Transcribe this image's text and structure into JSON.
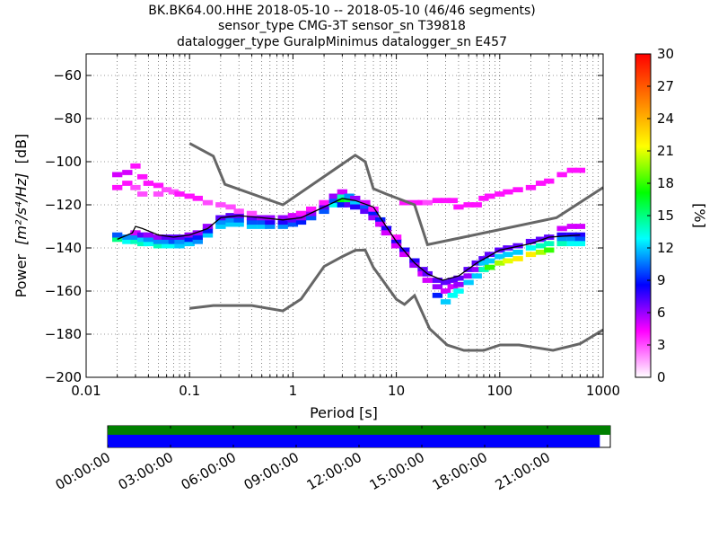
{
  "chart_data": {
    "type": "heatmap",
    "title_lines": [
      "BK.BK64.00.HHE   2018-05-10 -- 2018-05-10  (46/46 segments)",
      "sensor_type CMG-3T sensor_sn T39818",
      "datalogger_type GuralpMinimus datalogger_sn E457"
    ],
    "xlabel": "Period [s]",
    "ylabel_prefix": "Power",
    "ylabel_unit": "[m²/s⁴/Hz]",
    "ylabel_suffix": "[dB]",
    "x_scale": "log",
    "xlim": [
      0.01,
      1000
    ],
    "ylim": [
      -200,
      -50
    ],
    "x_ticks": [
      {
        "value": 0.01,
        "label": "0.01"
      },
      {
        "value": 0.1,
        "label": "0.1"
      },
      {
        "value": 1,
        "label": "1"
      },
      {
        "value": 10,
        "label": "10"
      },
      {
        "value": 100,
        "label": "100"
      },
      {
        "value": 1000,
        "label": "1000"
      }
    ],
    "y_ticks": [
      {
        "value": -60,
        "label": "−60"
      },
      {
        "value": -80,
        "label": "−80"
      },
      {
        "value": -100,
        "label": "−100"
      },
      {
        "value": -120,
        "label": "−120"
      },
      {
        "value": -140,
        "label": "−140"
      },
      {
        "value": -160,
        "label": "−160"
      },
      {
        "value": -180,
        "label": "−180"
      },
      {
        "value": -200,
        "label": "−200"
      }
    ],
    "grid": "dotted",
    "noise_models": {
      "high": [
        [
          0.1,
          -91.5
        ],
        [
          0.17,
          -97.4
        ],
        [
          0.22,
          -110.5
        ],
        [
          0.8,
          -120
        ],
        [
          4,
          -97
        ],
        [
          5,
          -100
        ],
        [
          6,
          -112.5
        ],
        [
          8,
          -115
        ],
        [
          15,
          -120
        ],
        [
          20,
          -138.5
        ],
        [
          354,
          -126
        ],
        [
          1000,
          -112
        ]
      ],
      "low": [
        [
          0.1,
          -168
        ],
        [
          0.17,
          -166.7
        ],
        [
          0.4,
          -166.7
        ],
        [
          0.8,
          -169.2
        ],
        [
          1.2,
          -163.7
        ],
        [
          2,
          -148.6
        ],
        [
          3,
          -144
        ],
        [
          4,
          -141.1
        ],
        [
          5,
          -141
        ],
        [
          6,
          -149
        ],
        [
          10,
          -163.8
        ],
        [
          12,
          -166.2
        ],
        [
          15,
          -162.1
        ],
        [
          21,
          -177.5
        ],
        [
          31,
          -185
        ],
        [
          45,
          -187.5
        ],
        [
          70,
          -187.5
        ],
        [
          101,
          -185
        ],
        [
          154,
          -185
        ],
        [
          328,
          -187.5
        ],
        [
          600,
          -184.4
        ],
        [
          1000,
          -178
        ]
      ]
    },
    "mean_curve": [
      [
        0.02,
        -136
      ],
      [
        0.028,
        -133
      ],
      [
        0.03,
        -130
      ],
      [
        0.035,
        -131
      ],
      [
        0.05,
        -134
      ],
      [
        0.07,
        -135
      ],
      [
        0.1,
        -134
      ],
      [
        0.15,
        -131
      ],
      [
        0.2,
        -126
      ],
      [
        0.3,
        -125
      ],
      [
        0.5,
        -126
      ],
      [
        0.8,
        -127
      ],
      [
        1.2,
        -126
      ],
      [
        2,
        -121
      ],
      [
        3,
        -117
      ],
      [
        4,
        -118
      ],
      [
        6,
        -121
      ],
      [
        7,
        -126
      ],
      [
        10,
        -137
      ],
      [
        15,
        -147
      ],
      [
        20,
        -152
      ],
      [
        28,
        -155
      ],
      [
        40,
        -153
      ],
      [
        60,
        -147
      ],
      [
        100,
        -141
      ],
      [
        200,
        -138
      ],
      [
        300,
        -135
      ],
      [
        600,
        -134
      ]
    ],
    "psd_density_percent": [
      {
        "p": 0.02,
        "db": -136,
        "v": 15
      },
      {
        "p": 0.02,
        "db": -134,
        "v": 10
      },
      {
        "p": 0.02,
        "db": -106,
        "v": 5
      },
      {
        "p": 0.02,
        "db": -112,
        "v": 4
      },
      {
        "p": 0.025,
        "db": -137,
        "v": 13
      },
      {
        "p": 0.025,
        "db": -135,
        "v": 11
      },
      {
        "p": 0.025,
        "db": -105,
        "v": 5
      },
      {
        "p": 0.025,
        "db": -110,
        "v": 4
      },
      {
        "p": 0.03,
        "db": -137,
        "v": 14
      },
      {
        "p": 0.03,
        "db": -135,
        "v": 11
      },
      {
        "p": 0.03,
        "db": -133,
        "v": 5
      },
      {
        "p": 0.03,
        "db": -102,
        "v": 4
      },
      {
        "p": 0.03,
        "db": -112,
        "v": 3
      },
      {
        "p": 0.035,
        "db": -138,
        "v": 14
      },
      {
        "p": 0.035,
        "db": -136,
        "v": 12
      },
      {
        "p": 0.035,
        "db": -134,
        "v": 7
      },
      {
        "p": 0.035,
        "db": -107,
        "v": 4
      },
      {
        "p": 0.035,
        "db": -115,
        "v": 3
      },
      {
        "p": 0.04,
        "db": -138,
        "v": 13
      },
      {
        "p": 0.04,
        "db": -136,
        "v": 11
      },
      {
        "p": 0.04,
        "db": -134,
        "v": 6
      },
      {
        "p": 0.04,
        "db": -110,
        "v": 4
      },
      {
        "p": 0.05,
        "db": -139,
        "v": 14
      },
      {
        "p": 0.05,
        "db": -137,
        "v": 11
      },
      {
        "p": 0.05,
        "db": -135,
        "v": 6
      },
      {
        "p": 0.05,
        "db": -111,
        "v": 4
      },
      {
        "p": 0.05,
        "db": -115,
        "v": 3
      },
      {
        "p": 0.06,
        "db": -139,
        "v": 13
      },
      {
        "p": 0.06,
        "db": -137,
        "v": 11
      },
      {
        "p": 0.06,
        "db": -135,
        "v": 7
      },
      {
        "p": 0.06,
        "db": -113,
        "v": 3
      },
      {
        "p": 0.07,
        "db": -139,
        "v": 13
      },
      {
        "p": 0.07,
        "db": -137,
        "v": 10
      },
      {
        "p": 0.07,
        "db": -135,
        "v": 7
      },
      {
        "p": 0.07,
        "db": -114,
        "v": 3
      },
      {
        "p": 0.08,
        "db": -139,
        "v": 12
      },
      {
        "p": 0.08,
        "db": -137,
        "v": 11
      },
      {
        "p": 0.08,
        "db": -135,
        "v": 7
      },
      {
        "p": 0.08,
        "db": -115,
        "v": 4
      },
      {
        "p": 0.1,
        "db": -138,
        "v": 12
      },
      {
        "p": 0.1,
        "db": -136,
        "v": 9
      },
      {
        "p": 0.1,
        "db": -134,
        "v": 6
      },
      {
        "p": 0.1,
        "db": -116,
        "v": 4
      },
      {
        "p": 0.12,
        "db": -137,
        "v": 11
      },
      {
        "p": 0.12,
        "db": -135,
        "v": 9
      },
      {
        "p": 0.12,
        "db": -133,
        "v": 6
      },
      {
        "p": 0.12,
        "db": -117,
        "v": 4
      },
      {
        "p": 0.15,
        "db": -134,
        "v": 12
      },
      {
        "p": 0.15,
        "db": -132,
        "v": 9
      },
      {
        "p": 0.15,
        "db": -130,
        "v": 6
      },
      {
        "p": 0.15,
        "db": -119,
        "v": 3
      },
      {
        "p": 0.2,
        "db": -130,
        "v": 12
      },
      {
        "p": 0.2,
        "db": -128,
        "v": 11
      },
      {
        "p": 0.2,
        "db": -126,
        "v": 7
      },
      {
        "p": 0.2,
        "db": -120,
        "v": 3
      },
      {
        "p": 0.25,
        "db": -129,
        "v": 12
      },
      {
        "p": 0.25,
        "db": -127,
        "v": 11
      },
      {
        "p": 0.25,
        "db": -125,
        "v": 7
      },
      {
        "p": 0.25,
        "db": -121,
        "v": 3
      },
      {
        "p": 0.3,
        "db": -129,
        "v": 12
      },
      {
        "p": 0.3,
        "db": -127,
        "v": 10
      },
      {
        "p": 0.3,
        "db": -125,
        "v": 7
      },
      {
        "p": 0.3,
        "db": -123,
        "v": 3
      },
      {
        "p": 0.4,
        "db": -130,
        "v": 12
      },
      {
        "p": 0.4,
        "db": -128,
        "v": 10
      },
      {
        "p": 0.4,
        "db": -126,
        "v": 7
      },
      {
        "p": 0.4,
        "db": -124,
        "v": 3
      },
      {
        "p": 0.5,
        "db": -130,
        "v": 12
      },
      {
        "p": 0.5,
        "db": -128,
        "v": 10
      },
      {
        "p": 0.5,
        "db": -126,
        "v": 6
      },
      {
        "p": 0.6,
        "db": -130,
        "v": 11
      },
      {
        "p": 0.6,
        "db": -128,
        "v": 8
      },
      {
        "p": 0.6,
        "db": -126,
        "v": 6
      },
      {
        "p": 0.8,
        "db": -130,
        "v": 11
      },
      {
        "p": 0.8,
        "db": -128,
        "v": 8
      },
      {
        "p": 0.8,
        "db": -126,
        "v": 6
      },
      {
        "p": 1.0,
        "db": -129,
        "v": 10
      },
      {
        "p": 1.0,
        "db": -127,
        "v": 7
      },
      {
        "p": 1.0,
        "db": -125,
        "v": 5
      },
      {
        "p": 1.2,
        "db": -128,
        "v": 9
      },
      {
        "p": 1.2,
        "db": -126,
        "v": 6
      },
      {
        "p": 1.2,
        "db": -124,
        "v": 4
      },
      {
        "p": 1.5,
        "db": -126,
        "v": 10
      },
      {
        "p": 1.5,
        "db": -124,
        "v": 6
      },
      {
        "p": 1.5,
        "db": -122,
        "v": 4
      },
      {
        "p": 2.0,
        "db": -123,
        "v": 10
      },
      {
        "p": 2.0,
        "db": -121,
        "v": 7
      },
      {
        "p": 2.0,
        "db": -119,
        "v": 4
      },
      {
        "p": 2.5,
        "db": -120,
        "v": 13
      },
      {
        "p": 2.5,
        "db": -118,
        "v": 10
      },
      {
        "p": 2.5,
        "db": -116,
        "v": 6
      },
      {
        "p": 3.0,
        "db": -118,
        "v": 17
      },
      {
        "p": 3.0,
        "db": -116,
        "v": 14
      },
      {
        "p": 3.0,
        "db": -120,
        "v": 9
      },
      {
        "p": 3.0,
        "db": -114,
        "v": 5
      },
      {
        "p": 3.5,
        "db": -118,
        "v": 16
      },
      {
        "p": 3.5,
        "db": -116,
        "v": 11
      },
      {
        "p": 3.5,
        "db": -120,
        "v": 7
      },
      {
        "p": 4.0,
        "db": -119,
        "v": 12
      },
      {
        "p": 4.0,
        "db": -121,
        "v": 8
      },
      {
        "p": 4.0,
        "db": -117,
        "v": 6
      },
      {
        "p": 5.0,
        "db": -121,
        "v": 10
      },
      {
        "p": 5.0,
        "db": -123,
        "v": 7
      },
      {
        "p": 5.0,
        "db": -119,
        "v": 5
      },
      {
        "p": 6.0,
        "db": -124,
        "v": 9
      },
      {
        "p": 6.0,
        "db": -126,
        "v": 6
      },
      {
        "p": 6.0,
        "db": -122,
        "v": 4
      },
      {
        "p": 7.0,
        "db": -127,
        "v": 9
      },
      {
        "p": 7.0,
        "db": -129,
        "v": 5
      },
      {
        "p": 8.0,
        "db": -131,
        "v": 8
      },
      {
        "p": 8.0,
        "db": -133,
        "v": 5
      },
      {
        "p": 10,
        "db": -137,
        "v": 8
      },
      {
        "p": 10,
        "db": -139,
        "v": 5
      },
      {
        "p": 10,
        "db": -135,
        "v": 4
      },
      {
        "p": 12,
        "db": -141,
        "v": 8
      },
      {
        "p": 12,
        "db": -143,
        "v": 5
      },
      {
        "p": 12,
        "db": -119,
        "v": 4
      },
      {
        "p": 15,
        "db": -146,
        "v": 8
      },
      {
        "p": 15,
        "db": -148,
        "v": 6
      },
      {
        "p": 15,
        "db": -119,
        "v": 4
      },
      {
        "p": 18,
        "db": -150,
        "v": 7
      },
      {
        "p": 18,
        "db": -152,
        "v": 5
      },
      {
        "p": 18,
        "db": -119,
        "v": 4
      },
      {
        "p": 20,
        "db": -152,
        "v": 7
      },
      {
        "p": 20,
        "db": -155,
        "v": 5
      },
      {
        "p": 20,
        "db": -119,
        "v": 3
      },
      {
        "p": 25,
        "db": -155,
        "v": 7
      },
      {
        "p": 25,
        "db": -158,
        "v": 6
      },
      {
        "p": 25,
        "db": -162,
        "v": 9
      },
      {
        "p": 25,
        "db": -118,
        "v": 4
      },
      {
        "p": 30,
        "db": -156,
        "v": 7
      },
      {
        "p": 30,
        "db": -160,
        "v": 5
      },
      {
        "p": 30,
        "db": -165,
        "v": 12
      },
      {
        "p": 30,
        "db": -118,
        "v": 4
      },
      {
        "p": 35,
        "db": -155,
        "v": 7
      },
      {
        "p": 35,
        "db": -158,
        "v": 5
      },
      {
        "p": 35,
        "db": -162,
        "v": 13
      },
      {
        "p": 35,
        "db": -118,
        "v": 4
      },
      {
        "p": 40,
        "db": -154,
        "v": 7
      },
      {
        "p": 40,
        "db": -157,
        "v": 6
      },
      {
        "p": 40,
        "db": -160,
        "v": 13
      },
      {
        "p": 40,
        "db": -121,
        "v": 4
      },
      {
        "p": 50,
        "db": -150,
        "v": 7
      },
      {
        "p": 50,
        "db": -153,
        "v": 6
      },
      {
        "p": 50,
        "db": -156,
        "v": 12
      },
      {
        "p": 50,
        "db": -120,
        "v": 4
      },
      {
        "p": 60,
        "db": -147,
        "v": 7
      },
      {
        "p": 60,
        "db": -150,
        "v": 6
      },
      {
        "p": 60,
        "db": -153,
        "v": 12
      },
      {
        "p": 60,
        "db": -120,
        "v": 4
      },
      {
        "p": 70,
        "db": -145,
        "v": 7
      },
      {
        "p": 70,
        "db": -147,
        "v": 12
      },
      {
        "p": 70,
        "db": -150,
        "v": 14
      },
      {
        "p": 70,
        "db": -117,
        "v": 4
      },
      {
        "p": 80,
        "db": -143,
        "v": 7
      },
      {
        "p": 80,
        "db": -146,
        "v": 12
      },
      {
        "p": 80,
        "db": -149,
        "v": 18
      },
      {
        "p": 80,
        "db": -116,
        "v": 4
      },
      {
        "p": 100,
        "db": -141,
        "v": 7
      },
      {
        "p": 100,
        "db": -144,
        "v": 12
      },
      {
        "p": 100,
        "db": -147,
        "v": 20
      },
      {
        "p": 100,
        "db": -115,
        "v": 4
      },
      {
        "p": 120,
        "db": -140,
        "v": 7
      },
      {
        "p": 120,
        "db": -143,
        "v": 12
      },
      {
        "p": 120,
        "db": -146,
        "v": 21
      },
      {
        "p": 120,
        "db": -114,
        "v": 4
      },
      {
        "p": 150,
        "db": -139,
        "v": 7
      },
      {
        "p": 150,
        "db": -142,
        "v": 12
      },
      {
        "p": 150,
        "db": -145,
        "v": 22
      },
      {
        "p": 150,
        "db": -113,
        "v": 4
      },
      {
        "p": 200,
        "db": -137,
        "v": 7
      },
      {
        "p": 200,
        "db": -140,
        "v": 13
      },
      {
        "p": 200,
        "db": -143,
        "v": 22
      },
      {
        "p": 200,
        "db": -112,
        "v": 4
      },
      {
        "p": 250,
        "db": -136,
        "v": 7
      },
      {
        "p": 250,
        "db": -139,
        "v": 14
      },
      {
        "p": 250,
        "db": -142,
        "v": 20
      },
      {
        "p": 250,
        "db": -110,
        "v": 4
      },
      {
        "p": 300,
        "db": -135,
        "v": 7
      },
      {
        "p": 300,
        "db": -138,
        "v": 14
      },
      {
        "p": 300,
        "db": -141,
        "v": 18
      },
      {
        "p": 300,
        "db": -109,
        "v": 4
      },
      {
        "p": 400,
        "db": -134,
        "v": 8
      },
      {
        "p": 400,
        "db": -136,
        "v": 11
      },
      {
        "p": 400,
        "db": -138,
        "v": 14
      },
      {
        "p": 400,
        "db": -131,
        "v": 5
      },
      {
        "p": 400,
        "db": -106,
        "v": 4
      },
      {
        "p": 500,
        "db": -134,
        "v": 8
      },
      {
        "p": 500,
        "db": -136,
        "v": 11
      },
      {
        "p": 500,
        "db": -138,
        "v": 13
      },
      {
        "p": 500,
        "db": -130,
        "v": 5
      },
      {
        "p": 500,
        "db": -104,
        "v": 4
      },
      {
        "p": 600,
        "db": -134,
        "v": 8
      },
      {
        "p": 600,
        "db": -136,
        "v": 10
      },
      {
        "p": 600,
        "db": -138,
        "v": 13
      },
      {
        "p": 600,
        "db": -130,
        "v": 5
      },
      {
        "p": 600,
        "db": -104,
        "v": 4
      }
    ],
    "colorbar": {
      "label": "[%]",
      "range": [
        0,
        30
      ],
      "ticks": [
        0,
        3,
        6,
        9,
        12,
        15,
        18,
        21,
        24,
        27,
        30
      ],
      "colors": [
        "#ffffff",
        "#ff00ff",
        "#0000ff",
        "#00ffff",
        "#00ff00",
        "#ffff00",
        "#ff7f00",
        "#ff0000"
      ]
    },
    "colors": {
      "noise_model": "#666666",
      "mean": "#000000",
      "segment_coverage": "#0000ff",
      "data_coverage": "#008000"
    },
    "timeline": {
      "ticks": [
        "00:00:00",
        "03:00:00",
        "06:00:00",
        "09:00:00",
        "12:00:00",
        "15:00:00",
        "18:00:00",
        "21:00:00"
      ],
      "data_coverage": [
        [
          0,
          24
        ]
      ],
      "segment_coverage": [
        [
          0,
          23.5
        ]
      ]
    }
  }
}
